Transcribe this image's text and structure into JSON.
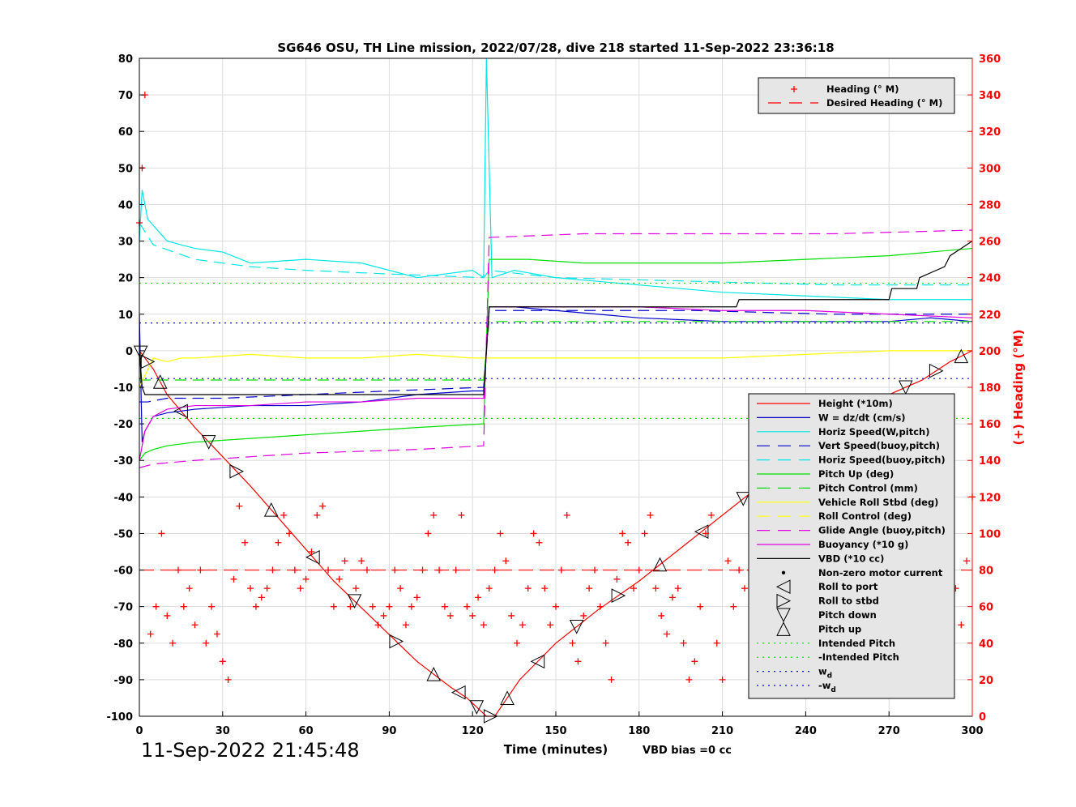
{
  "chart_data": {
    "type": "line",
    "title": "SG646 OSU, TH Line mission, 2022/07/28, dive 218 started 11-Sep-2022 23:36:18",
    "xlabel": "Time (minutes)",
    "ylabel_right": "(+) Heading (°M)",
    "xlim": [
      0,
      300
    ],
    "ylim": [
      -100,
      80
    ],
    "y2lim": [
      0,
      360
    ],
    "x_ticks": [
      "0",
      "30",
      "60",
      "90",
      "120",
      "150",
      "180",
      "210",
      "240",
      "270",
      "300"
    ],
    "y_ticks": [
      "80",
      "70",
      "60",
      "50",
      "40",
      "30",
      "20",
      "10",
      "0",
      "-10",
      "-20",
      "-30",
      "-40",
      "-50",
      "-60",
      "-70",
      "-80",
      "-90",
      "-100"
    ],
    "y2_ticks": [
      "360",
      "340",
      "320",
      "300",
      "280",
      "260",
      "240",
      "220",
      "200",
      "180",
      "160",
      "140",
      "120",
      "100",
      "80",
      "60",
      "40",
      "20",
      "0"
    ],
    "grid": true,
    "timestamp": "11-Sep-2022 21:45:48",
    "vbd_bias": "VBD bias =0 cc",
    "legend_heading": [
      {
        "name": "Heading (° M)",
        "color": "#ff0000",
        "marker": "+"
      },
      {
        "name": "Desired Heading (° M)",
        "color": "#ff0000",
        "style": "dashed"
      }
    ],
    "legend_main": [
      {
        "name": "Height (*10m)",
        "color": "#ff0000",
        "style": "solid"
      },
      {
        "name": "W = dz/dt (cm/s)",
        "color": "#0000cd",
        "style": "solid"
      },
      {
        "name": "Horiz Speed(W,pitch)",
        "color": "#00e6e6",
        "style": "solid"
      },
      {
        "name": "Vert Speed(buoy,pitch)",
        "color": "#0000cd",
        "style": "dashed"
      },
      {
        "name": "Horiz Speed(buoy,pitch)",
        "color": "#00e6e6",
        "style": "dashed"
      },
      {
        "name": "Pitch Up (deg)",
        "color": "#00dd00",
        "style": "solid"
      },
      {
        "name": "Pitch Control (mm)",
        "color": "#00dd00",
        "style": "dashed"
      },
      {
        "name": "Vehicle Roll Stbd (deg)",
        "color": "#ffff00",
        "style": "solid"
      },
      {
        "name": "Roll Control (deg)",
        "color": "#ffff00",
        "style": "dashed"
      },
      {
        "name": "Glide Angle (buoy,pitch)",
        "color": "#e000e0",
        "style": "dashed"
      },
      {
        "name": "Buoyancy (*10 g)",
        "color": "#e000e0",
        "style": "solid"
      },
      {
        "name": "VBD (*10 cc)",
        "color": "#000000",
        "style": "solid"
      },
      {
        "name": "Non-zero motor current",
        "color": "#000000",
        "marker": "dot"
      },
      {
        "name": "Roll to port",
        "color": "#000000",
        "marker": "tri-left"
      },
      {
        "name": "Roll to stbd",
        "color": "#000000",
        "marker": "tri-right"
      },
      {
        "name": "Pitch down",
        "color": "#000000",
        "marker": "tri-down"
      },
      {
        "name": "Pitch up",
        "color": "#000000",
        "marker": "tri-up"
      },
      {
        "name": "Intended Pitch",
        "color": "#00dd00",
        "style": "dotted"
      },
      {
        "name": "-Intended Pitch",
        "color": "#00dd00",
        "style": "dotted"
      },
      {
        "name": "w_d",
        "color": "#0000cd",
        "style": "dotted"
      },
      {
        "name": "-w_d",
        "color": "#0000cd",
        "style": "dotted"
      }
    ],
    "series": [
      {
        "name": "Height (*10m)",
        "color": "#ff0000",
        "x": [
          0,
          1,
          5,
          10,
          20,
          30,
          40,
          55,
          70,
          85,
          100,
          112,
          118,
          125,
          128,
          137,
          150,
          165,
          180,
          195,
          210,
          225,
          240,
          255,
          270,
          282,
          292,
          300
        ],
        "y": [
          0,
          -1,
          -5,
          -12,
          -21,
          -29,
          -37,
          -50,
          -63,
          -74,
          -85,
          -92,
          -95,
          -100,
          -100,
          -90,
          -80,
          -71,
          -63,
          -54,
          -45,
          -36,
          -27,
          -19,
          -12,
          -8,
          -3,
          0
        ]
      },
      {
        "name": "W = dz/dt (cm/s)",
        "color": "#0000cd",
        "x": [
          0,
          1,
          2,
          5,
          10,
          20,
          40,
          60,
          80,
          100,
          120,
          124,
          125,
          126,
          135,
          150,
          180,
          210,
          240,
          270,
          285,
          300
        ],
        "y": [
          10,
          -25,
          -22,
          -18,
          -17,
          -16,
          -15,
          -15,
          -14,
          -12,
          -11,
          -11,
          0,
          12,
          12,
          11,
          9,
          8,
          8,
          8,
          9,
          8
        ]
      },
      {
        "name": "Horiz Speed(W,pitch)",
        "color": "#00e6e6",
        "x": [
          0,
          1,
          3,
          10,
          20,
          30,
          40,
          60,
          80,
          100,
          120,
          124,
          125,
          127,
          135,
          150,
          180,
          210,
          240,
          270,
          300
        ],
        "y": [
          30,
          44,
          36,
          30,
          28,
          27,
          24,
          25,
          24,
          20,
          22,
          20,
          80,
          20,
          22,
          20,
          18,
          16,
          15,
          14,
          14
        ]
      },
      {
        "name": "Vert Speed(buoy,pitch)",
        "color": "#0000cd",
        "dashed": true,
        "x": [
          0,
          3,
          10,
          30,
          60,
          90,
          124,
          126,
          150,
          200,
          250,
          300
        ],
        "y": [
          -14,
          -14,
          -13,
          -13,
          -12,
          -11,
          -10,
          11,
          11,
          11,
          10,
          10
        ]
      },
      {
        "name": "Horiz Speed(buoy,pitch)",
        "color": "#00e6e6",
        "dashed": true,
        "x": [
          0,
          5,
          20,
          40,
          60,
          90,
          124,
          126,
          150,
          200,
          250,
          300
        ],
        "y": [
          35,
          29,
          25,
          23,
          22,
          21,
          20,
          22,
          20,
          19,
          18,
          18
        ]
      },
      {
        "name": "Pitch Up (deg)",
        "color": "#00dd00",
        "x": [
          0,
          2,
          5,
          10,
          20,
          40,
          60,
          80,
          100,
          124,
          126,
          140,
          160,
          180,
          210,
          240,
          270,
          300
        ],
        "y": [
          -30,
          -28,
          -27,
          -26,
          -25,
          -24,
          -23,
          -22,
          -21,
          -20,
          25,
          25,
          24,
          24,
          24,
          25,
          26,
          28
        ]
      },
      {
        "name": "Pitch Control (mm)",
        "color": "#00dd00",
        "dashed": true,
        "x": [
          0,
          10,
          60,
          124,
          126,
          200,
          300
        ],
        "y": [
          -8,
          -8,
          -8,
          -8,
          8,
          8,
          8
        ]
      },
      {
        "name": "Vehicle Roll Stbd (deg)",
        "color": "#ffff00",
        "x": [
          0,
          5,
          10,
          15,
          20,
          40,
          60,
          80,
          100,
          120,
          124,
          126,
          150,
          180,
          210,
          240,
          270,
          300
        ],
        "y": [
          -10,
          -2,
          -3,
          -2,
          -2,
          -1,
          -2,
          -2,
          -1,
          -2,
          -2,
          -2,
          -2,
          -2,
          -2,
          -1,
          0,
          0
        ]
      },
      {
        "name": "Buoyancy (*10 g)",
        "color": "#e000e0",
        "x": [
          0,
          2,
          5,
          10,
          20,
          40,
          60,
          80,
          100,
          124,
          126,
          150,
          180,
          210,
          240,
          270,
          300
        ],
        "y": [
          -30,
          -22,
          -18,
          -16,
          -15,
          -15,
          -14,
          -14,
          -13,
          -13,
          12,
          12,
          12,
          11,
          11,
          10,
          9
        ]
      },
      {
        "name": "Glide Angle (buoy,pitch)",
        "color": "#e000e0",
        "dashed": true,
        "x": [
          0,
          5,
          20,
          60,
          100,
          124,
          126,
          160,
          200,
          250,
          300
        ],
        "y": [
          -32,
          -31,
          -30,
          -28,
          -27,
          -26,
          31,
          32,
          32,
          32,
          33
        ]
      },
      {
        "name": "VBD (*10 cc)",
        "color": "#000000",
        "x": [
          0,
          1,
          2,
          124,
          125,
          126,
          200,
          215,
          216,
          270,
          271,
          280,
          281,
          290,
          292,
          296,
          300
        ],
        "y": [
          0,
          -10,
          -12,
          -12,
          0,
          12,
          12,
          12,
          14,
          14,
          17,
          17,
          20,
          23,
          26,
          28,
          30
        ]
      },
      {
        "name": "Intended Pitch",
        "color": "#00dd00",
        "dotted": true,
        "x": [
          0,
          300
        ],
        "y": [
          18.5,
          18.5
        ]
      },
      {
        "name": "-Intended Pitch",
        "color": "#00dd00",
        "dotted": true,
        "x": [
          0,
          300
        ],
        "y": [
          -18.5,
          -18.5
        ]
      },
      {
        "name": "w_d",
        "color": "#0000cd",
        "dotted": true,
        "x": [
          0,
          300
        ],
        "y": [
          7.6,
          7.6
        ]
      },
      {
        "name": "-w_d",
        "color": "#0000cd",
        "dotted": true,
        "x": [
          0,
          300
        ],
        "y": [
          -7.6,
          -7.6
        ]
      }
    ],
    "heading_series": {
      "name": "Heading (° M)",
      "axis": "right",
      "x": [
        0,
        1,
        2,
        4,
        6,
        8,
        10,
        12,
        14,
        16,
        18,
        20,
        22,
        24,
        26,
        28,
        30,
        32,
        34,
        36,
        38,
        40,
        42,
        44,
        46,
        48,
        50,
        52,
        54,
        56,
        58,
        60,
        62,
        64,
        66,
        68,
        70,
        72,
        74,
        76,
        78,
        80,
        82,
        84,
        86,
        88,
        90,
        92,
        94,
        96,
        98,
        100,
        102,
        104,
        106,
        108,
        110,
        112,
        114,
        116,
        118,
        120,
        122,
        124,
        126,
        128,
        130,
        132,
        134,
        136,
        138,
        140,
        142,
        144,
        146,
        148,
        150,
        152,
        154,
        156,
        158,
        160,
        162,
        164,
        166,
        168,
        170,
        172,
        174,
        176,
        178,
        180,
        182,
        184,
        186,
        188,
        190,
        192,
        194,
        196,
        198,
        200,
        202,
        204,
        206,
        208,
        210,
        212,
        214,
        216,
        218,
        220,
        222,
        224,
        226,
        228,
        230,
        232,
        234,
        236,
        238,
        240,
        242,
        244,
        246,
        248,
        250,
        252,
        254,
        256,
        258,
        260,
        262,
        264,
        266,
        268,
        270,
        272,
        274,
        276,
        278,
        280,
        282,
        284,
        286,
        288,
        290,
        292,
        294,
        296,
        298,
        300
      ],
      "y": [
        270,
        300,
        340,
        45,
        60,
        100,
        55,
        40,
        80,
        60,
        70,
        50,
        80,
        40,
        60,
        45,
        30,
        20,
        75,
        115,
        95,
        70,
        60,
        65,
        70,
        80,
        95,
        110,
        100,
        80,
        70,
        75,
        90,
        110,
        115,
        80,
        60,
        75,
        85,
        60,
        70,
        85,
        80,
        60,
        50,
        55,
        60,
        80,
        70,
        50,
        60,
        65,
        80,
        100,
        110,
        80,
        60,
        55,
        80,
        110,
        60,
        55,
        65,
        50,
        70,
        80,
        100,
        85,
        55,
        40,
        50,
        70,
        100,
        95,
        70,
        50,
        60,
        80,
        110,
        40,
        30,
        55,
        70,
        80,
        60,
        40,
        20,
        75,
        100,
        95,
        70,
        80,
        100,
        110,
        70,
        55,
        45,
        65,
        70,
        40,
        20,
        30,
        60,
        100,
        110,
        40,
        20,
        85,
        60,
        80,
        70,
        80,
        100,
        90,
        45,
        25,
        40,
        100,
        120,
        90,
        70,
        60,
        80,
        100,
        120,
        115,
        80,
        60,
        70,
        80,
        90,
        100,
        60,
        50,
        75,
        95,
        110,
        65,
        55,
        75,
        45,
        40,
        100,
        80,
        55,
        60,
        40,
        110,
        70,
        50,
        85,
        120
      ]
    },
    "desired_heading": {
      "name": "Desired Heading (° M)",
      "axis": "right",
      "x": [
        0,
        300
      ],
      "y": [
        80,
        80
      ]
    }
  }
}
